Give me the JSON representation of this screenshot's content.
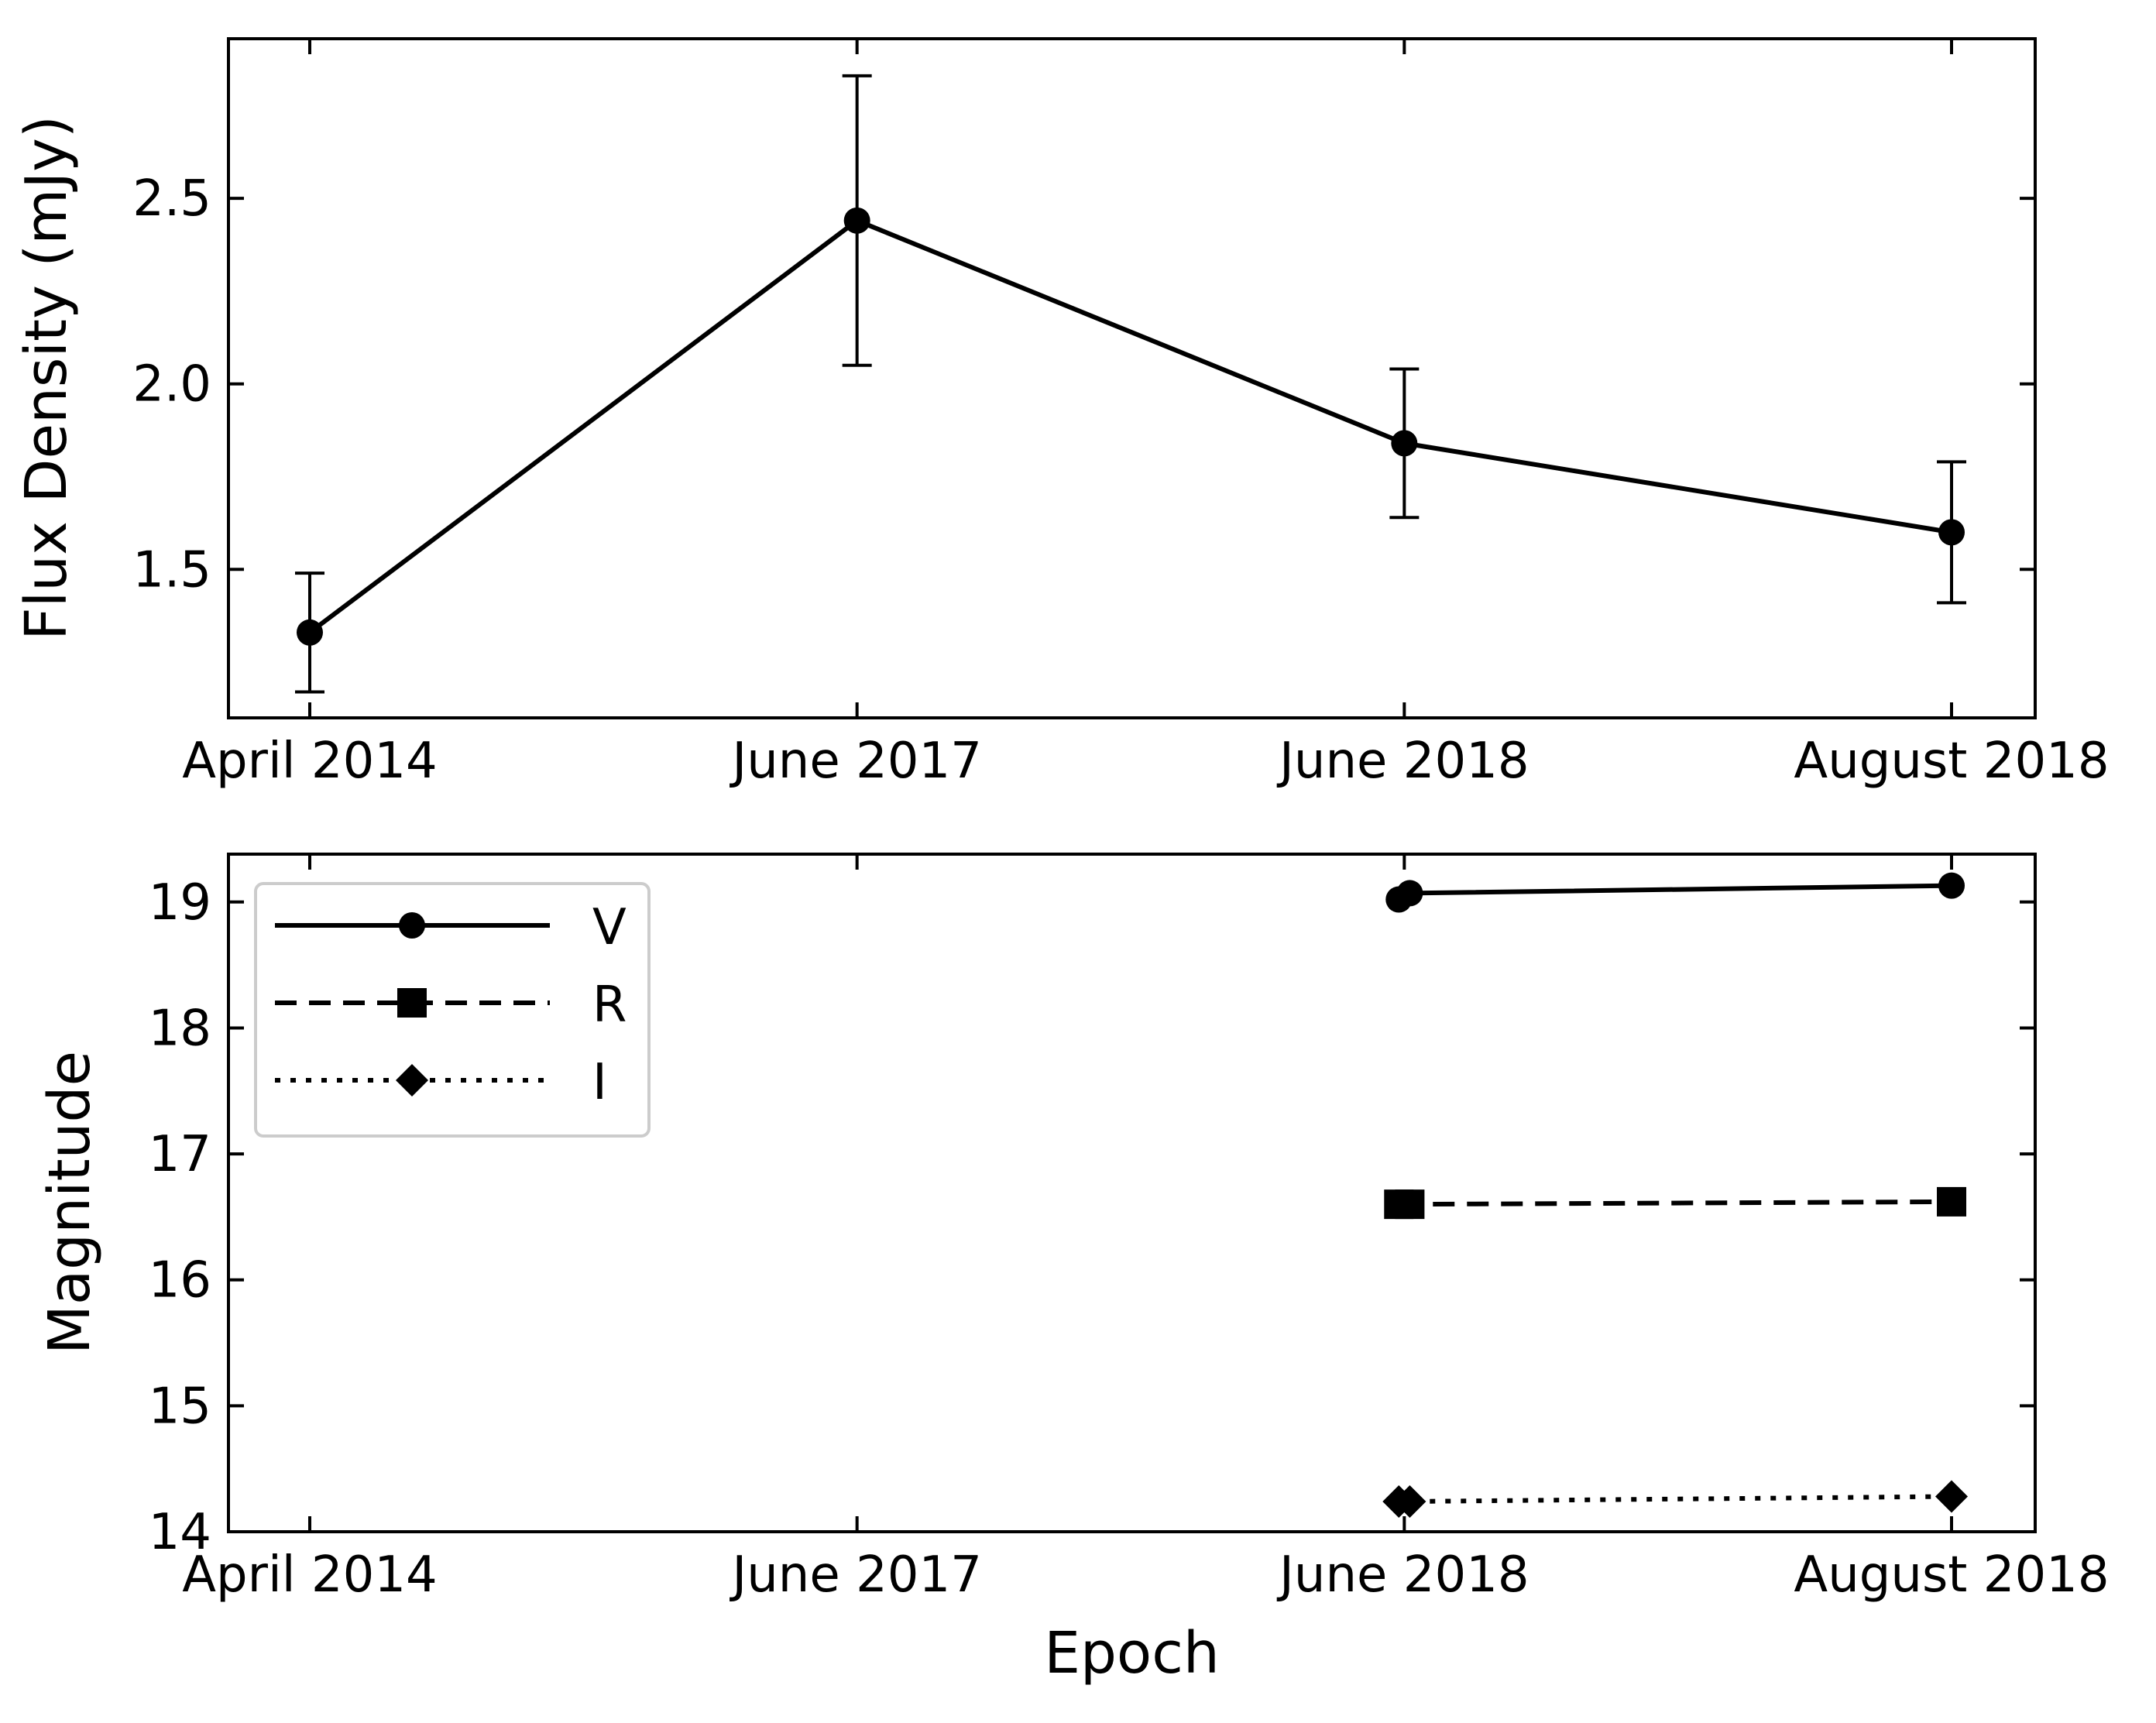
{
  "chart_data": [
    {
      "type": "line",
      "panel": "top",
      "title": "",
      "xlabel": "",
      "ylabel": "Flux Density (mJy)",
      "categories": [
        "April 2014",
        "June 2017",
        "June 2018",
        "August 2018"
      ],
      "ylim": [
        1.1,
        2.93
      ],
      "yticks": [
        1.5,
        2.0,
        2.5
      ],
      "ytick_labels": [
        "1.5",
        "2.0",
        "2.5"
      ],
      "series": [
        {
          "name": "Flux density",
          "style": "solid",
          "marker": "circle",
          "points": [
            {
              "x": 0,
              "y": 1.33,
              "err_low": 1.17,
              "err_high": 1.49
            },
            {
              "x": 1,
              "y": 2.44,
              "err_low": 2.05,
              "err_high": 2.83
            },
            {
              "x": 2,
              "y": 1.84,
              "err_low": 1.64,
              "err_high": 2.04
            },
            {
              "x": 3,
              "y": 1.6,
              "err_low": 1.41,
              "err_high": 1.79
            }
          ]
        }
      ]
    },
    {
      "type": "line",
      "panel": "bottom",
      "title": "",
      "xlabel": "Epoch",
      "ylabel": "Magnitude",
      "categories": [
        "April 2014",
        "June 2017",
        "June 2018",
        "August 2018"
      ],
      "ylim": [
        14.0,
        19.38
      ],
      "yticks": [
        14,
        15,
        16,
        17,
        18,
        19
      ],
      "ytick_labels": [
        "14",
        "15",
        "16",
        "17",
        "18",
        "19"
      ],
      "legend_position": "upper-left",
      "series": [
        {
          "name": "V",
          "style": "solid",
          "marker": "circle",
          "points": [
            {
              "x": 1.99,
              "y": 19.02
            },
            {
              "x": 2.01,
              "y": 19.07
            },
            {
              "x": 3.0,
              "y": 19.13
            }
          ]
        },
        {
          "name": "R",
          "style": "dashed",
          "marker": "square",
          "points": [
            {
              "x": 1.99,
              "y": 16.6
            },
            {
              "x": 2.01,
              "y": 16.6
            },
            {
              "x": 3.0,
              "y": 16.62
            }
          ]
        },
        {
          "name": "I",
          "style": "dotted",
          "marker": "diamond",
          "points": [
            {
              "x": 1.99,
              "y": 14.24
            },
            {
              "x": 2.01,
              "y": 14.24
            },
            {
              "x": 3.0,
              "y": 14.28
            }
          ]
        }
      ]
    }
  ]
}
